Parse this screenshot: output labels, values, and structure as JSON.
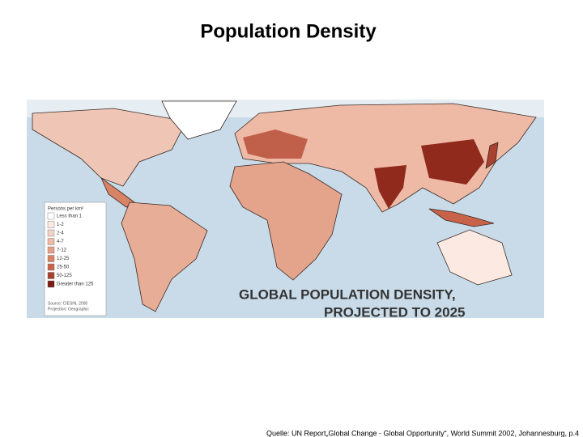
{
  "slide": {
    "title": "Population Density",
    "map": {
      "title_lines": [
        "GLOBAL POPULATION DENSITY,",
        "PROJECTED TO 2025"
      ],
      "legend": {
        "heading": "Persons per km²",
        "items": [
          {
            "label": "Less than 1",
            "color": "#ffffff"
          },
          {
            "label": "1-2",
            "color": "#fbe9e2"
          },
          {
            "label": "2-4",
            "color": "#f5d2c4"
          },
          {
            "label": "4-7",
            "color": "#eebaa6"
          },
          {
            "label": "7-12",
            "color": "#e49f86"
          },
          {
            "label": "12-25",
            "color": "#d88266"
          },
          {
            "label": "25-50",
            "color": "#c8634a"
          },
          {
            "label": "50-125",
            "color": "#a8412f"
          },
          {
            "label": "Greater than 125",
            "color": "#7a1c14"
          }
        ],
        "source_lines": [
          "Source: CIESIN, 2000",
          "Projection: Geographic"
        ]
      }
    },
    "footer": "Quelle: UN Report„Global Change - Global Opportunity“, World Summit 2002, Johannesburg,  p.4"
  }
}
